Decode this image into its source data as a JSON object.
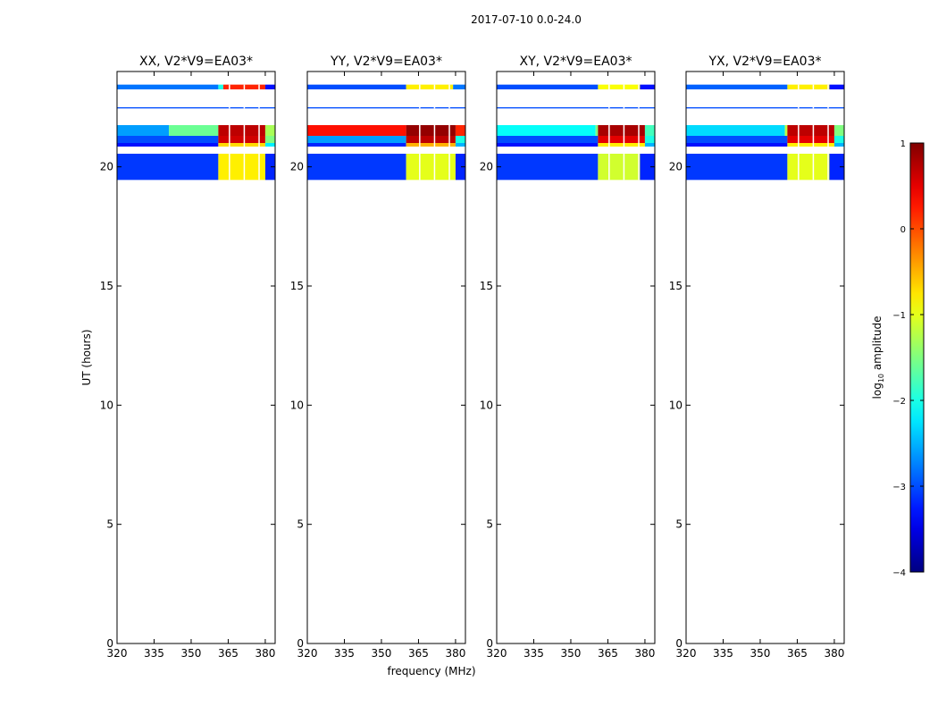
{
  "figure_title": "2017-07-10 0.0-24.0",
  "chart_data": {
    "type": "heatmap",
    "title": "2017-07-10 0.0-24.0",
    "xlabel": "frequency (MHz)",
    "ylabel": "UT (hours)",
    "xlim": [
      320,
      384
    ],
    "ylim": [
      0,
      24
    ],
    "x_ticks": [
      320,
      335,
      350,
      365,
      380
    ],
    "y_ticks": [
      0,
      5,
      10,
      15,
      20
    ],
    "panels": [
      {
        "title": "XX, V2*V9=EA03*",
        "bands": [
          {
            "y": [
              23.25,
              23.45
            ],
            "segments": [
              [
                320,
                361,
                -2.8
              ],
              [
                361,
                363,
                -2.0
              ],
              [
                363,
                380,
                0.2
              ],
              [
                380,
                384,
                -3.3
              ]
            ]
          },
          {
            "y": [
              22.45,
              22.5
            ],
            "segments": [
              [
                320,
                384,
                -3.0
              ]
            ]
          },
          {
            "y": [
              21.3,
              21.75
            ],
            "segments": [
              [
                320,
                341,
                -2.6
              ],
              [
                341,
                361,
                -1.6
              ],
              [
                361,
                380,
                0.7
              ],
              [
                380,
                384,
                -1.3
              ]
            ]
          },
          {
            "y": [
              21.0,
              21.3
            ],
            "segments": [
              [
                320,
                361,
                -3.0
              ],
              [
                361,
                380,
                0.6
              ],
              [
                380,
                384,
                -1.5
              ]
            ]
          },
          {
            "y": [
              20.85,
              21.0
            ],
            "segments": [
              [
                320,
                361,
                -3.3
              ],
              [
                361,
                380,
                -0.7
              ],
              [
                380,
                384,
                -2.2
              ]
            ]
          },
          {
            "y": [
              19.45,
              20.55
            ],
            "segments": [
              [
                320,
                361,
                -3.1
              ],
              [
                361,
                380,
                -0.8
              ],
              [
                380,
                384,
                -3.2
              ]
            ]
          }
        ],
        "chan_gaps": [
          365.5,
          371.5,
          377.5
        ]
      },
      {
        "title": "YY, V2*V9=EA03*",
        "bands": [
          {
            "y": [
              23.25,
              23.45
            ],
            "segments": [
              [
                320,
                360,
                -3.0
              ],
              [
                360,
                379,
                -0.8
              ],
              [
                379,
                384,
                -2.8
              ]
            ]
          },
          {
            "y": [
              22.45,
              22.5
            ],
            "segments": [
              [
                320,
                384,
                -3.0
              ]
            ]
          },
          {
            "y": [
              21.3,
              21.75
            ],
            "segments": [
              [
                320,
                360,
                0.3
              ],
              [
                360,
                380,
                0.9
              ],
              [
                380,
                384,
                0.2
              ]
            ]
          },
          {
            "y": [
              21.0,
              21.3
            ],
            "segments": [
              [
                320,
                360,
                -2.6
              ],
              [
                360,
                380,
                0.7
              ],
              [
                380,
                384,
                -2.0
              ]
            ]
          },
          {
            "y": [
              20.85,
              21.0
            ],
            "segments": [
              [
                320,
                360,
                -3.2
              ],
              [
                360,
                380,
                -0.5
              ],
              [
                380,
                384,
                -2.5
              ]
            ]
          },
          {
            "y": [
              19.45,
              20.55
            ],
            "segments": [
              [
                320,
                360,
                -3.1
              ],
              [
                360,
                380,
                -1.0
              ],
              [
                380,
                384,
                -3.2
              ]
            ]
          }
        ],
        "chan_gaps": [
          365.5,
          371.5,
          377.5
        ]
      },
      {
        "title": "XY, V2*V9=EA03*",
        "bands": [
          {
            "y": [
              23.25,
              23.45
            ],
            "segments": [
              [
                320,
                361,
                -3.0
              ],
              [
                361,
                378,
                -0.9
              ],
              [
                378,
                384,
                -3.3
              ]
            ]
          },
          {
            "y": [
              22.45,
              22.5
            ],
            "segments": [
              [
                320,
                384,
                -3.0
              ]
            ]
          },
          {
            "y": [
              21.3,
              21.75
            ],
            "segments": [
              [
                320,
                360,
                -2.1
              ],
              [
                360,
                361,
                -1.5
              ],
              [
                361,
                380,
                0.8
              ],
              [
                380,
                384,
                -1.8
              ]
            ]
          },
          {
            "y": [
              21.0,
              21.3
            ],
            "segments": [
              [
                320,
                361,
                -3.0
              ],
              [
                361,
                380,
                0.5
              ],
              [
                380,
                384,
                -2.0
              ]
            ]
          },
          {
            "y": [
              20.85,
              21.0
            ],
            "segments": [
              [
                320,
                361,
                -3.3
              ],
              [
                361,
                380,
                -0.8
              ],
              [
                380,
                384,
                -2.5
              ]
            ]
          },
          {
            "y": [
              19.45,
              20.55
            ],
            "segments": [
              [
                320,
                361,
                -3.1
              ],
              [
                361,
                378,
                -1.1
              ],
              [
                378,
                384,
                -3.2
              ]
            ]
          }
        ],
        "chan_gaps": [
          365.5,
          371.5,
          377.5
        ]
      },
      {
        "title": "YX, V2*V9=EA03*",
        "bands": [
          {
            "y": [
              23.25,
              23.45
            ],
            "segments": [
              [
                320,
                361,
                -2.9
              ],
              [
                361,
                378,
                -0.8
              ],
              [
                378,
                384,
                -3.3
              ]
            ]
          },
          {
            "y": [
              22.45,
              22.5
            ],
            "segments": [
              [
                320,
                384,
                -3.0
              ]
            ]
          },
          {
            "y": [
              21.3,
              21.75
            ],
            "segments": [
              [
                320,
                360,
                -2.3
              ],
              [
                360,
                361,
                -1.2
              ],
              [
                361,
                380,
                0.7
              ],
              [
                380,
                384,
                -1.5
              ]
            ]
          },
          {
            "y": [
              21.0,
              21.3
            ],
            "segments": [
              [
                320,
                361,
                -3.0
              ],
              [
                361,
                380,
                0.5
              ],
              [
                380,
                384,
                -2.0
              ]
            ]
          },
          {
            "y": [
              20.85,
              21.0
            ],
            "segments": [
              [
                320,
                361,
                -3.3
              ],
              [
                361,
                380,
                -0.8
              ],
              [
                380,
                384,
                -2.5
              ]
            ]
          },
          {
            "y": [
              19.45,
              20.55
            ],
            "segments": [
              [
                320,
                361,
                -3.1
              ],
              [
                361,
                378,
                -1.0
              ],
              [
                378,
                384,
                -3.2
              ]
            ]
          }
        ],
        "chan_gaps": [
          365.5,
          371.5,
          377.5
        ]
      }
    ],
    "colorbar": {
      "label": "log",
      "label_sub": "10",
      "label_rest": " amplitude",
      "range": [
        -4,
        1
      ],
      "ticks": [
        1,
        0,
        -1,
        -2,
        -3,
        -4
      ],
      "tick_labels": [
        "1",
        "0",
        "−1",
        "−2",
        "−3",
        "−4"
      ],
      "colormap": "jet"
    }
  }
}
